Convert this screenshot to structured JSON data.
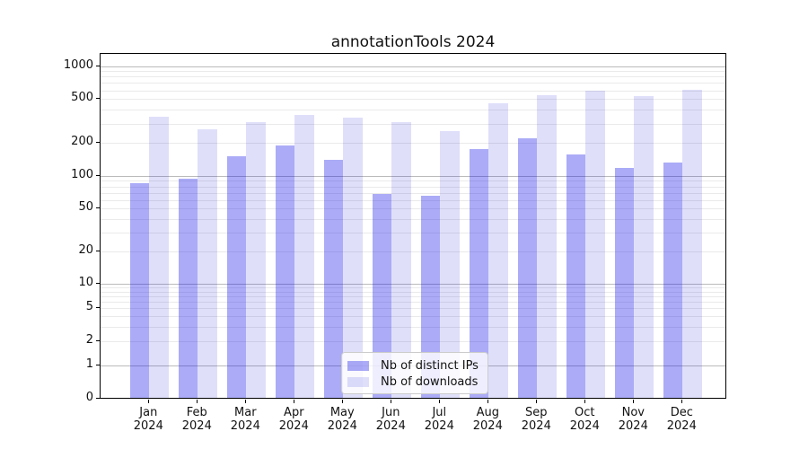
{
  "title": "annotationTools 2024",
  "chart_data": {
    "type": "bar",
    "title": "annotationTools 2024",
    "categories": [
      "Jan 2024",
      "Feb 2024",
      "Mar 2024",
      "Apr 2024",
      "May 2024",
      "Jun 2024",
      "Jul 2024",
      "Aug 2024",
      "Sep 2024",
      "Oct 2024",
      "Nov 2024",
      "Dec 2024"
    ],
    "series": [
      {
        "name": "Nb of distinct IPs",
        "color": "rgba(13,13,232,0.35)",
        "color_on_white": "#a9a9f2",
        "values": [
          86,
          94,
          150,
          188,
          140,
          68,
          66,
          177,
          219,
          157,
          119,
          133
        ]
      },
      {
        "name": "Nb of downloads",
        "color": "rgba(13,13,220,0.135)",
        "color_on_white": "#dedef9",
        "values": [
          349,
          265,
          307,
          357,
          338,
          306,
          255,
          455,
          545,
          597,
          535,
          610
        ]
      }
    ],
    "xlabel": "",
    "ylabel": "",
    "yscale": "symlog",
    "ylim": [
      0,
      1200
    ],
    "ytick_values": [
      0,
      1,
      2,
      5,
      10,
      20,
      50,
      100,
      200,
      500,
      1000
    ],
    "ytick_labels": [
      "0",
      "1",
      "2",
      "5",
      "10",
      "20",
      "50",
      "100",
      "200",
      "500",
      "1000"
    ],
    "grid": true,
    "legend_position": "lower-center",
    "style": {
      "major_grid_color": "#bbbbbb",
      "minor_grid_color": "#eaeaea",
      "spine_color": "#000000",
      "text_color": "#111111",
      "background": "#ffffff"
    }
  }
}
